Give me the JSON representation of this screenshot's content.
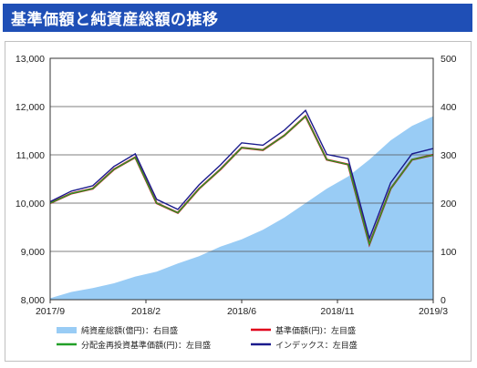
{
  "header": {
    "title": "基準価額と純資産総額の推移"
  },
  "chart_data": {
    "type": "line",
    "title": "",
    "x_ticks": [
      "2017/9",
      "2018/2",
      "2018/6",
      "2018/11",
      "2019/3"
    ],
    "y_left": {
      "lim": [
        8000,
        13000
      ],
      "ticks": [
        "8,000",
        "9,000",
        "10,000",
        "11,000",
        "12,000",
        "13,000"
      ]
    },
    "y_right": {
      "lim": [
        0,
        500
      ],
      "ticks": [
        "0",
        "100",
        "200",
        "300",
        "400",
        "500"
      ]
    },
    "grid": true,
    "legend_position": "bottom",
    "x": [
      "2017/9",
      "2017/10",
      "2017/11",
      "2017/12",
      "2018/1",
      "2018/2",
      "2018/3",
      "2018/4",
      "2018/5",
      "2018/6",
      "2018/7",
      "2018/8",
      "2018/9",
      "2018/10",
      "2018/11",
      "2018/12",
      "2019/1",
      "2019/2",
      "2019/3"
    ],
    "series": [
      {
        "name": "純資産総額(億円)：右目盛",
        "axis": "right",
        "style": "area",
        "color": "#99ccf5",
        "values": [
          3,
          16,
          24,
          34,
          48,
          58,
          75,
          90,
          110,
          125,
          145,
          170,
          200,
          230,
          255,
          290,
          330,
          360,
          380
        ]
      },
      {
        "name": "基準価額(円)：左目盛",
        "axis": "left",
        "color": "#e0001b",
        "values": [
          10000,
          10200,
          10300,
          10700,
          10950,
          10000,
          9800,
          10300,
          10700,
          11150,
          11100,
          11400,
          11800,
          10900,
          10800,
          9150,
          10300,
          10900,
          11000
        ]
      },
      {
        "name": "分配金再投資基準価額(円)：左目盛",
        "axis": "left",
        "color": "#22a028",
        "values": [
          10000,
          10200,
          10300,
          10700,
          10950,
          10000,
          9800,
          10300,
          10700,
          11150,
          11100,
          11400,
          11800,
          10900,
          10800,
          9150,
          10300,
          10900,
          11000
        ]
      },
      {
        "name": "インデックス：左目盛",
        "axis": "left",
        "color": "#1a1a8c",
        "values": [
          10030,
          10250,
          10360,
          10760,
          11020,
          10080,
          9870,
          10380,
          10790,
          11250,
          11200,
          11510,
          11920,
          11010,
          10920,
          9270,
          10420,
          11020,
          11130
        ]
      }
    ]
  }
}
